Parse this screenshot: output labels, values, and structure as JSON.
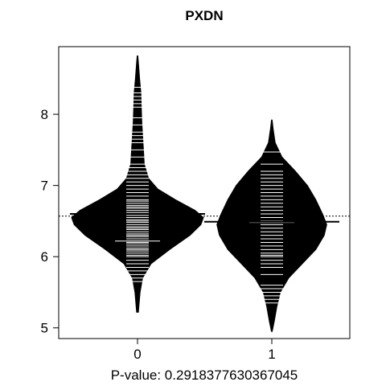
{
  "chart_data": {
    "type": "beanplot",
    "title": "PXDN",
    "xlabel": "P-value: 0.291837763036704​5",
    "ylabel": "",
    "categories": [
      "0",
      "1"
    ],
    "ylim": [
      4.85,
      8.95
    ],
    "yticks": [
      5,
      6,
      7,
      8
    ],
    "overall_mean": 6.57,
    "grid": false,
    "groups": [
      {
        "category": "0",
        "mean": 6.6,
        "median": 6.22,
        "range": [
          5.22,
          8.82
        ],
        "density": [
          [
            5.22,
            0.01
          ],
          [
            5.5,
            0.03
          ],
          [
            5.7,
            0.06
          ],
          [
            5.9,
            0.16
          ],
          [
            6.1,
            0.38
          ],
          [
            6.3,
            0.62
          ],
          [
            6.45,
            0.75
          ],
          [
            6.55,
            0.78
          ],
          [
            6.65,
            0.68
          ],
          [
            6.8,
            0.45
          ],
          [
            6.95,
            0.24
          ],
          [
            7.1,
            0.13
          ],
          [
            7.3,
            0.08
          ],
          [
            7.5,
            0.07
          ],
          [
            7.7,
            0.06
          ],
          [
            7.9,
            0.05
          ],
          [
            8.1,
            0.045
          ],
          [
            8.3,
            0.04
          ],
          [
            8.5,
            0.025
          ],
          [
            8.7,
            0.012
          ],
          [
            8.82,
            0.004
          ]
        ],
        "points": [
          5.65,
          5.7,
          5.75,
          5.8,
          5.85,
          5.9,
          5.95,
          6.0,
          6.02,
          6.05,
          6.08,
          6.1,
          6.12,
          6.15,
          6.18,
          6.2,
          6.22,
          6.25,
          6.28,
          6.3,
          6.32,
          6.35,
          6.38,
          6.4,
          6.42,
          6.45,
          6.48,
          6.5,
          6.52,
          6.55,
          6.58,
          6.6,
          6.62,
          6.65,
          6.68,
          6.7,
          6.72,
          6.75,
          6.78,
          6.8,
          6.85,
          6.9,
          6.95,
          7.0,
          7.05,
          7.1,
          7.15,
          7.2,
          7.25,
          7.3,
          7.4,
          7.5,
          7.6,
          7.65,
          7.7,
          7.75,
          7.85,
          7.95,
          8.1,
          8.15,
          8.2,
          8.25,
          8.3,
          8.38
        ],
        "long_lines": [
          6.22
        ]
      },
      {
        "category": "1",
        "mean": 6.49,
        "median": 6.48,
        "range": [
          4.95,
          7.92
        ],
        "density": [
          [
            4.95,
            0.005
          ],
          [
            5.1,
            0.03
          ],
          [
            5.3,
            0.06
          ],
          [
            5.5,
            0.1
          ],
          [
            5.7,
            0.2
          ],
          [
            5.9,
            0.36
          ],
          [
            6.1,
            0.52
          ],
          [
            6.3,
            0.62
          ],
          [
            6.45,
            0.65
          ],
          [
            6.6,
            0.6
          ],
          [
            6.8,
            0.52
          ],
          [
            7.0,
            0.42
          ],
          [
            7.2,
            0.28
          ],
          [
            7.4,
            0.12
          ],
          [
            7.6,
            0.04
          ],
          [
            7.8,
            0.015
          ],
          [
            7.92,
            0.004
          ]
        ],
        "points": [
          5.35,
          5.4,
          5.45,
          5.5,
          5.55,
          5.6,
          5.75,
          5.85,
          5.9,
          5.95,
          6.0,
          6.02,
          6.05,
          6.1,
          6.15,
          6.2,
          6.25,
          6.3,
          6.35,
          6.4,
          6.45,
          6.48,
          6.5,
          6.55,
          6.6,
          6.65,
          6.7,
          6.75,
          6.8,
          6.85,
          6.9,
          6.95,
          7.0,
          7.05,
          7.1,
          7.15,
          7.2,
          7.3,
          7.47
        ],
        "long_lines": [
          6.48
        ]
      }
    ]
  }
}
